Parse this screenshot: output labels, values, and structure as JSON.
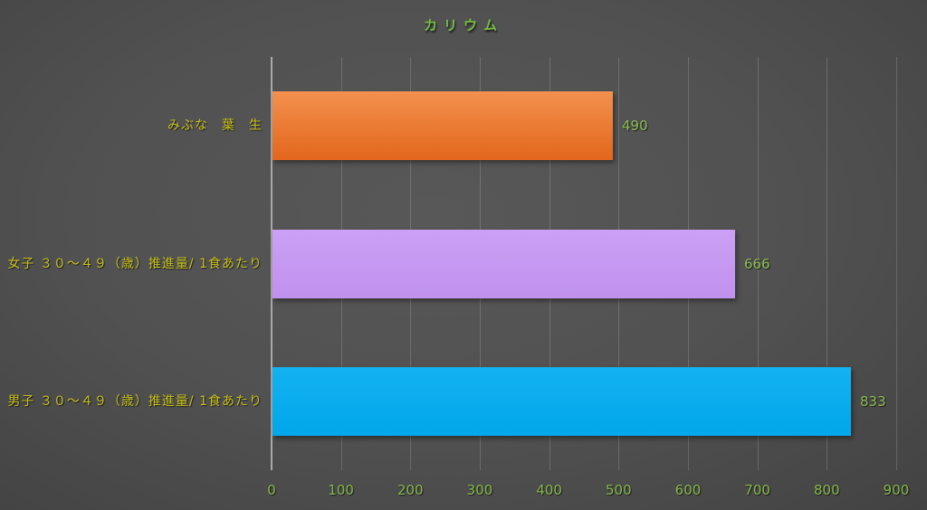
{
  "chart_data": {
    "type": "bar",
    "orientation": "horizontal",
    "title": "カリウム",
    "categories": [
      "みぶな　葉　生",
      "女子 ３０～４９（歳）推進量/ 1食あたり",
      "男子 ３０～４９（歳）推進量/ 1食あたり"
    ],
    "values": [
      490,
      666,
      833
    ],
    "value_labels": [
      "490",
      "666",
      "833"
    ],
    "bar_gradients": [
      [
        "#F2914D",
        "#E3661C"
      ],
      [
        "#CBA0F5",
        "#C191EE"
      ],
      [
        "#13B2F1",
        "#00A7EA"
      ]
    ],
    "bar_color_names": [
      "orange",
      "purple",
      "cyan"
    ],
    "x_ticks": [
      "0",
      "100",
      "200",
      "300",
      "400",
      "500",
      "600",
      "700",
      "800",
      "900"
    ],
    "xlim": [
      0,
      900
    ],
    "xlabel": "",
    "ylabel": "",
    "grid": true,
    "legend": "none",
    "colors": {
      "title": "#76BE43",
      "category_label": "#C9C21E",
      "value_label": "#8DBD54",
      "tick_label": "#86B84B",
      "axis_line": "#A9A9A9",
      "gridline": "rgba(255,255,255,0.16)"
    }
  }
}
